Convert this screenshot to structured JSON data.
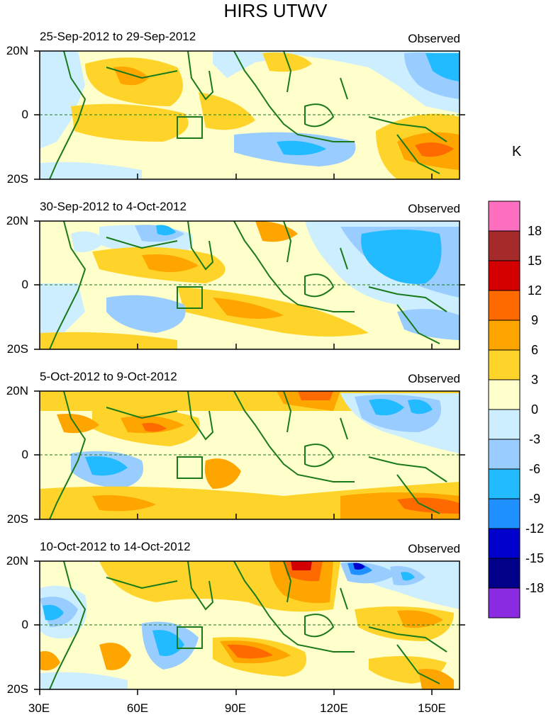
{
  "title": "HIRS UTWV",
  "unit_label": "K",
  "panels": [
    {
      "period": "25-Sep-2012 to 29-Sep-2012",
      "type": "Observed"
    },
    {
      "period": "30-Sep-2012 to 4-Oct-2012",
      "type": "Observed"
    },
    {
      "period": "5-Oct-2012 to 9-Oct-2012",
      "type": "Observed"
    },
    {
      "period": "10-Oct-2012 to 14-Oct-2012",
      "type": "Observed"
    }
  ],
  "lat_labels": [
    "20N",
    "0",
    "20S"
  ],
  "lon_labels": [
    "30E",
    "60E",
    "90E",
    "120E",
    "150E"
  ],
  "colorbar": {
    "labels": [
      "18",
      "15",
      "12",
      "9",
      "6",
      "3",
      "0",
      "-3",
      "-6",
      "-9",
      "-12",
      "-15",
      "-18"
    ],
    "colors": [
      "#ff6fbf",
      "#a52a2a",
      "#d40000",
      "#ff6a00",
      "#ffa500",
      "#ffd42a",
      "#ffffcc",
      "#cceeff",
      "#99ccff",
      "#22bbff",
      "#1e90ff",
      "#0000cc",
      "#000088",
      "#8a2be2"
    ]
  },
  "colors": {
    "coast": "#1a7a1a",
    "equator": "#1a7a1a"
  }
}
